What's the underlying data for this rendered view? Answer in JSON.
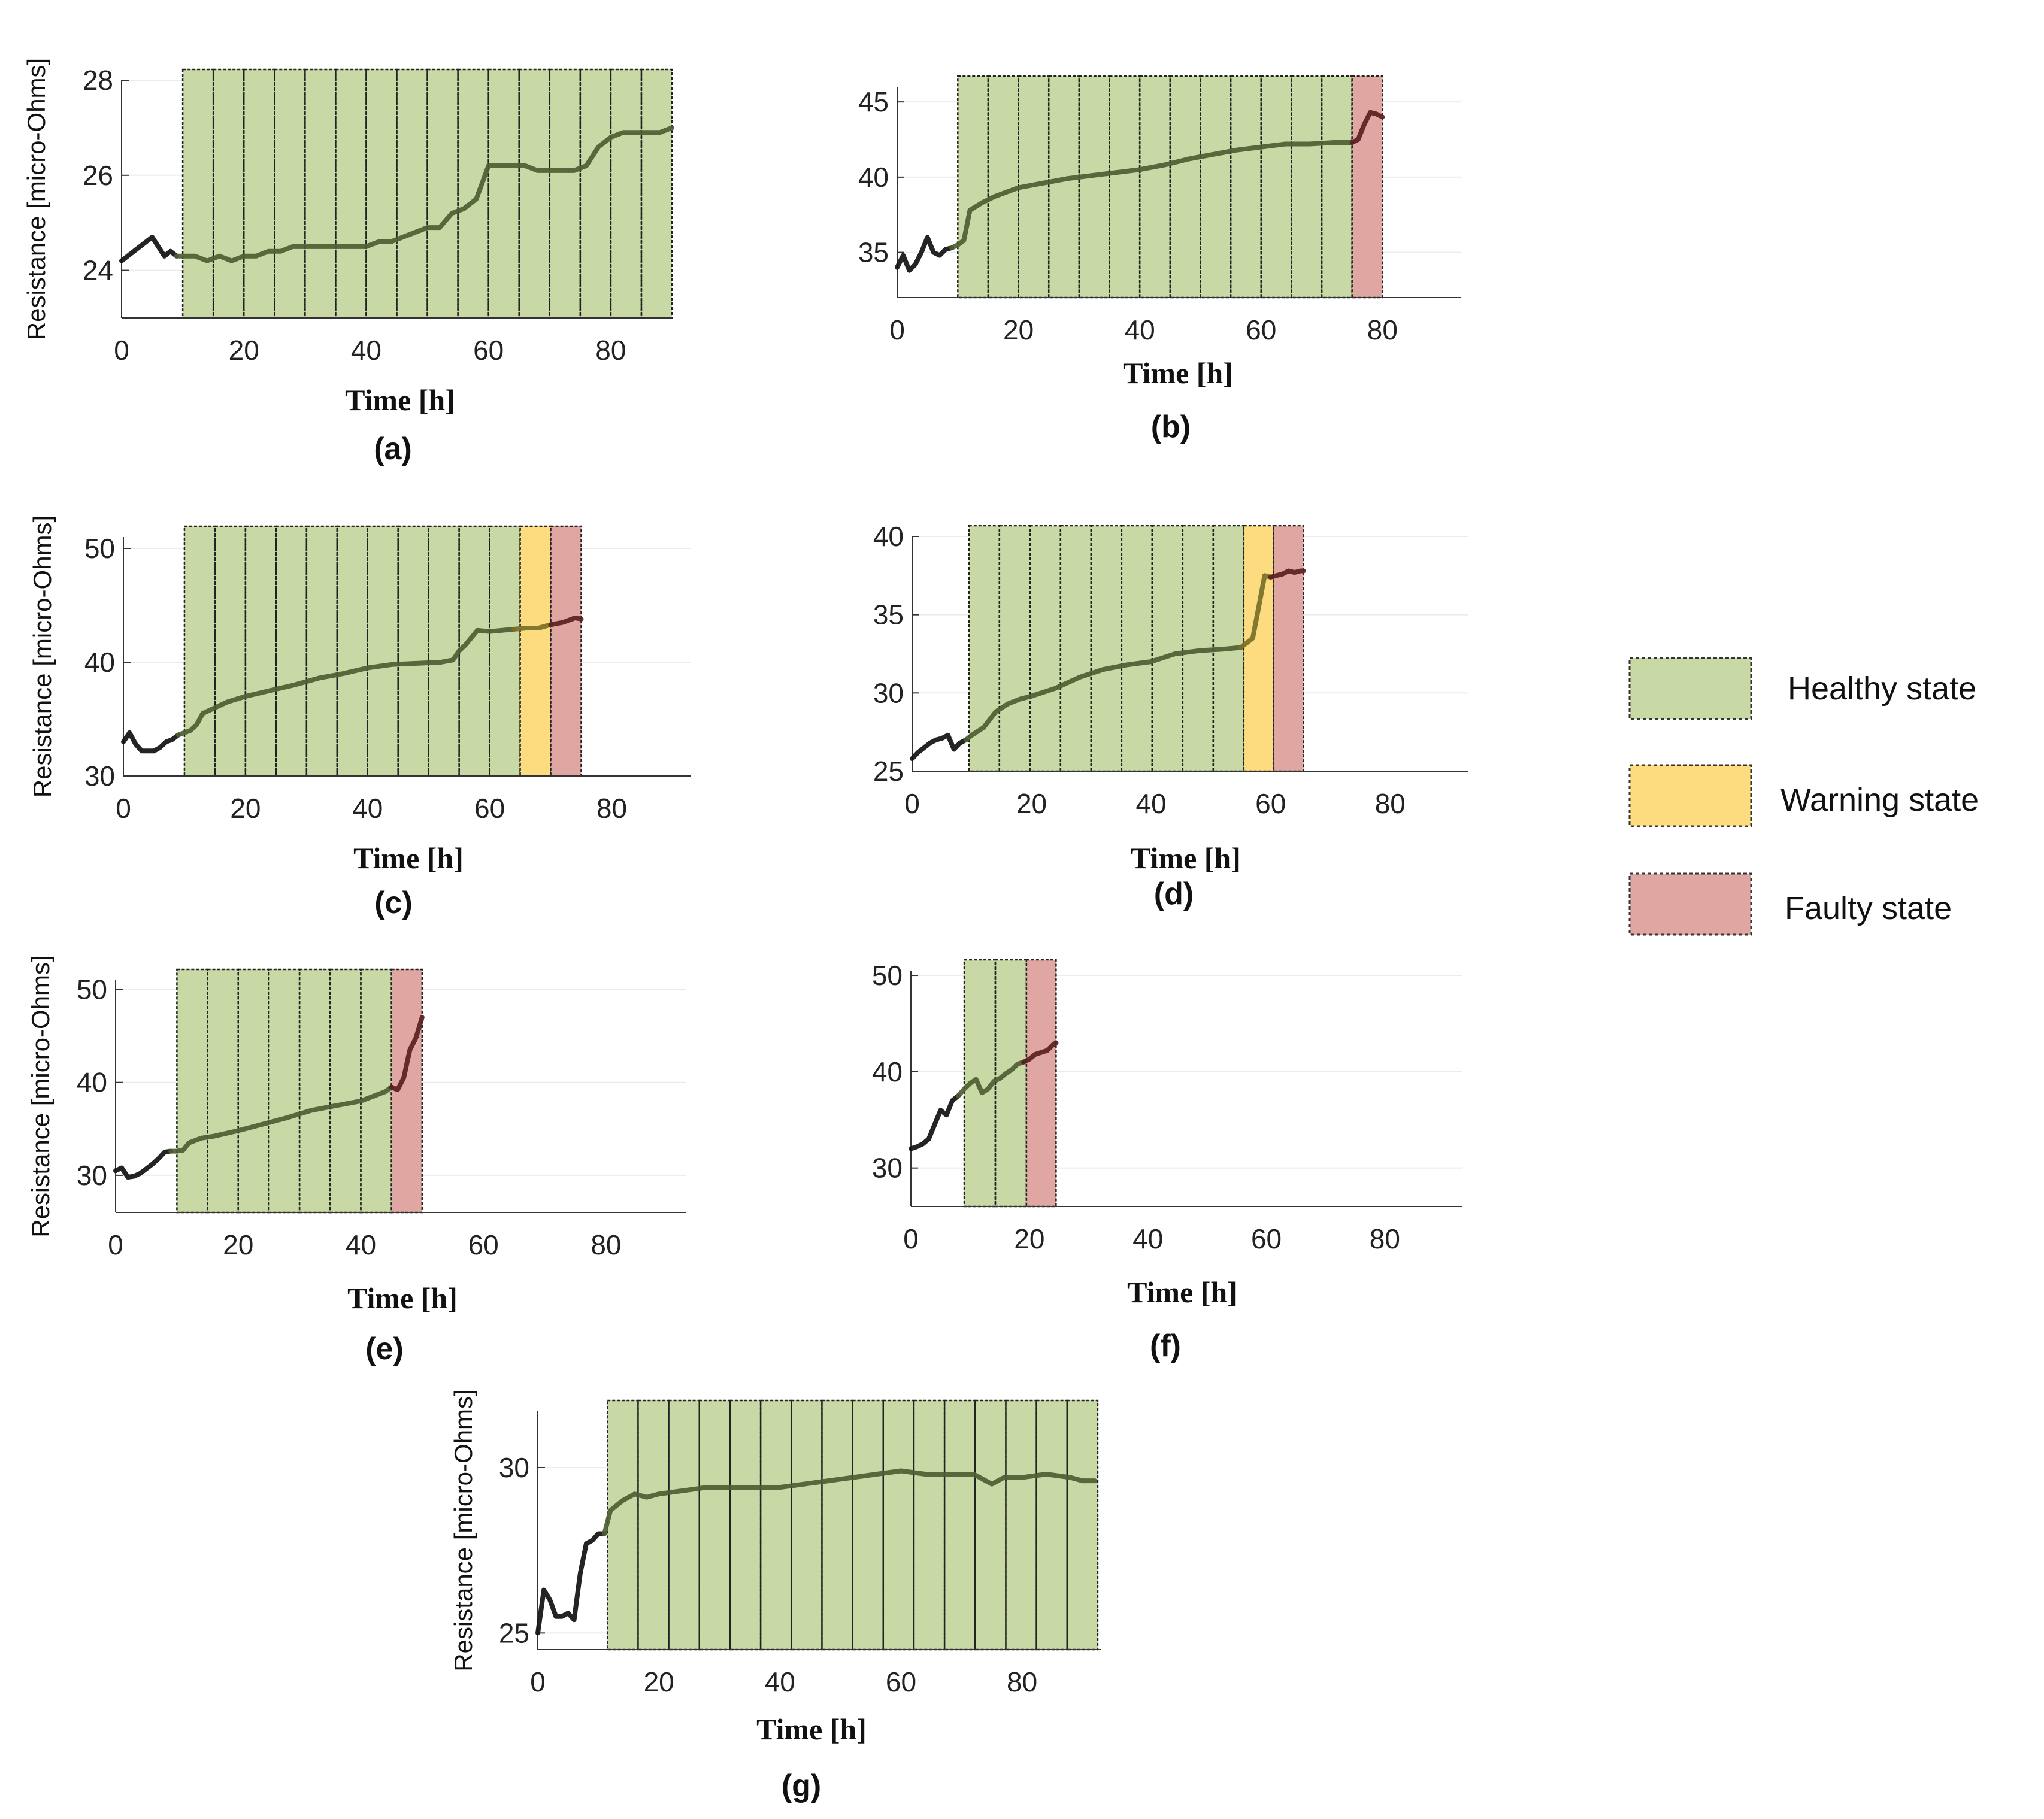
{
  "figure": {
    "legend": [
      {
        "label": "Healthy state",
        "color": "#c9d9a5"
      },
      {
        "label": "Warning state",
        "color": "#fcdc7e"
      },
      {
        "label": "Faulty state",
        "color": "#e0a7a2"
      }
    ]
  },
  "chart_data": [
    {
      "id": "a",
      "type": "line",
      "panel_label": "(a)",
      "xlabel": "Time [h]",
      "ylabel": "Resistance [micro-Ohms]",
      "xlim": [
        0,
        90
      ],
      "ylim": [
        23,
        28
      ],
      "xticks": [
        "0",
        "20",
        "40",
        "60",
        "80"
      ],
      "xtick_values": [
        0,
        20,
        40,
        60,
        80
      ],
      "yticks": [
        "24",
        "26",
        "28"
      ],
      "ytick_values": [
        24,
        26,
        28
      ],
      "states": [
        {
          "state": "healthy",
          "from": 10,
          "to": 90,
          "cells": 16
        }
      ],
      "x": [
        0,
        2,
        4,
        5,
        6,
        7,
        8,
        9,
        10,
        12,
        14,
        16,
        18,
        20,
        22,
        24,
        26,
        28,
        30,
        32,
        34,
        36,
        38,
        40,
        42,
        44,
        46,
        48,
        50,
        52,
        54,
        56,
        58,
        60,
        62,
        64,
        66,
        68,
        70,
        72,
        74,
        76,
        78,
        80,
        82,
        84,
        86,
        88,
        90
      ],
      "y": [
        24.2,
        24.4,
        24.6,
        24.7,
        24.5,
        24.3,
        24.4,
        24.3,
        24.3,
        24.3,
        24.2,
        24.3,
        24.2,
        24.3,
        24.3,
        24.4,
        24.4,
        24.5,
        24.5,
        24.5,
        24.5,
        24.5,
        24.5,
        24.5,
        24.6,
        24.6,
        24.7,
        24.8,
        24.9,
        24.9,
        25.2,
        25.3,
        25.5,
        26.2,
        26.2,
        26.2,
        26.2,
        26.1,
        26.1,
        26.1,
        26.1,
        26.2,
        26.6,
        26.8,
        26.9,
        26.9,
        26.9,
        26.9,
        27.0
      ]
    },
    {
      "id": "b",
      "type": "line",
      "panel_label": "(b)",
      "xlabel": "Time [h]",
      "ylabel": "",
      "xlim": [
        0,
        93
      ],
      "ylim": [
        32,
        46
      ],
      "xticks": [
        "0",
        "20",
        "40",
        "60",
        "80"
      ],
      "xtick_values": [
        0,
        20,
        40,
        60,
        80
      ],
      "yticks": [
        "35",
        "40",
        "45"
      ],
      "ytick_values": [
        35,
        40,
        45
      ],
      "states": [
        {
          "state": "healthy",
          "from": 10,
          "to": 75,
          "cells": 13
        },
        {
          "state": "faulty",
          "from": 75,
          "to": 80,
          "cells": 1
        }
      ],
      "x": [
        0,
        1,
        2,
        3,
        4,
        5,
        6,
        7,
        8,
        9,
        10,
        11,
        12,
        14,
        16,
        18,
        20,
        24,
        28,
        32,
        36,
        40,
        44,
        48,
        52,
        56,
        60,
        64,
        68,
        72,
        74,
        75,
        76,
        77,
        78,
        79,
        80
      ],
      "y": [
        34.0,
        34.8,
        33.8,
        34.2,
        35.0,
        36.0,
        35.0,
        34.8,
        35.2,
        35.3,
        35.5,
        35.8,
        37.8,
        38.3,
        38.7,
        39.0,
        39.3,
        39.6,
        39.9,
        40.1,
        40.3,
        40.5,
        40.8,
        41.2,
        41.5,
        41.8,
        42.0,
        42.2,
        42.2,
        42.3,
        42.3,
        42.3,
        42.5,
        43.5,
        44.3,
        44.2,
        44.0
      ]
    },
    {
      "id": "c",
      "type": "line",
      "panel_label": "(c)",
      "xlabel": "Time [h]",
      "ylabel": "Resistance [micro-Ohms]",
      "xlim": [
        0,
        93
      ],
      "ylim": [
        30,
        51
      ],
      "xticks": [
        "0",
        "20",
        "40",
        "60",
        "80"
      ],
      "xtick_values": [
        0,
        20,
        40,
        60,
        80
      ],
      "yticks": [
        "30",
        "40",
        "50"
      ],
      "ytick_values": [
        30,
        40,
        50
      ],
      "states": [
        {
          "state": "healthy",
          "from": 10,
          "to": 65,
          "cells": 11
        },
        {
          "state": "warning",
          "from": 65,
          "to": 70,
          "cells": 1
        },
        {
          "state": "faulty",
          "from": 70,
          "to": 75,
          "cells": 1
        }
      ],
      "x": [
        0,
        1,
        2,
        3,
        4,
        5,
        6,
        7,
        8,
        9,
        10,
        11,
        12,
        13,
        15,
        17,
        20,
        24,
        28,
        32,
        36,
        40,
        44,
        48,
        52,
        54,
        55,
        56,
        58,
        60,
        62,
        64,
        66,
        68,
        70,
        72,
        74,
        75
      ],
      "y": [
        33.0,
        33.8,
        32.8,
        32.2,
        32.2,
        32.2,
        32.5,
        33.0,
        33.2,
        33.6,
        33.8,
        34.0,
        34.5,
        35.5,
        36.0,
        36.5,
        37.0,
        37.5,
        38.0,
        38.6,
        39.0,
        39.5,
        39.8,
        39.9,
        40.0,
        40.2,
        41.0,
        41.5,
        42.8,
        42.7,
        42.8,
        42.9,
        43.0,
        43.0,
        43.3,
        43.5,
        43.9,
        43.8
      ]
    },
    {
      "id": "d",
      "type": "line",
      "panel_label": "(d)",
      "xlabel": "Time [h]",
      "ylabel": "",
      "xlim": [
        0,
        93
      ],
      "ylim": [
        25,
        40
      ],
      "xticks": [
        "0",
        "20",
        "40",
        "60",
        "80"
      ],
      "xtick_values": [
        0,
        20,
        40,
        60,
        80
      ],
      "yticks": [
        "25",
        "30",
        "35",
        "40"
      ],
      "ytick_values": [
        25,
        30,
        35,
        40
      ],
      "states": [
        {
          "state": "healthy",
          "from": 9.5,
          "to": 55.5,
          "cells": 9
        },
        {
          "state": "warning",
          "from": 55.5,
          "to": 60.5,
          "cells": 1
        },
        {
          "state": "faulty",
          "from": 60.5,
          "to": 65.5,
          "cells": 1
        }
      ],
      "x": [
        0,
        1,
        2,
        3,
        4,
        5,
        6,
        7,
        8,
        9,
        10,
        12,
        14,
        16,
        18,
        20,
        24,
        28,
        32,
        36,
        40,
        44,
        48,
        52,
        55,
        56,
        57,
        58,
        59,
        60,
        61,
        62,
        63,
        64,
        65,
        65.5
      ],
      "y": [
        25.8,
        26.2,
        26.5,
        26.8,
        27.0,
        27.1,
        27.3,
        26.4,
        26.8,
        27.0,
        27.3,
        27.8,
        28.8,
        29.3,
        29.6,
        29.8,
        30.3,
        31.0,
        31.5,
        31.8,
        32.0,
        32.5,
        32.7,
        32.8,
        32.9,
        33.2,
        33.5,
        35.5,
        37.5,
        37.4,
        37.5,
        37.6,
        37.8,
        37.7,
        37.8,
        37.8
      ]
    },
    {
      "id": "e",
      "type": "line",
      "panel_label": "(e)",
      "xlabel": "Time [h]",
      "ylabel": "Resistance [micro-Ohms]",
      "xlim": [
        0,
        93
      ],
      "ylim": [
        26,
        51
      ],
      "xticks": [
        "0",
        "20",
        "40",
        "60",
        "80"
      ],
      "xtick_values": [
        0,
        20,
        40,
        60,
        80
      ],
      "yticks": [
        "30",
        "40",
        "50"
      ],
      "ytick_values": [
        30,
        40,
        50
      ],
      "states": [
        {
          "state": "healthy",
          "from": 10,
          "to": 45,
          "cells": 7
        },
        {
          "state": "faulty",
          "from": 45,
          "to": 50,
          "cells": 1
        }
      ],
      "x": [
        0,
        1,
        2,
        3,
        4,
        5,
        6,
        7,
        8,
        9,
        10,
        11,
        12,
        14,
        16,
        20,
        24,
        28,
        32,
        36,
        40,
        42,
        44,
        45,
        46,
        47,
        48,
        49,
        50
      ],
      "y": [
        30.5,
        30.8,
        29.8,
        29.9,
        30.2,
        30.7,
        31.2,
        31.8,
        32.5,
        32.6,
        32.6,
        32.7,
        33.5,
        34.0,
        34.2,
        34.8,
        35.5,
        36.2,
        37.0,
        37.5,
        38.0,
        38.5,
        39.0,
        39.5,
        39.2,
        40.5,
        43.5,
        44.8,
        47.0
      ]
    },
    {
      "id": "f",
      "type": "line",
      "panel_label": "(f)",
      "xlabel": "Time [h]",
      "ylabel": "",
      "xlim": [
        0,
        93
      ],
      "ylim": [
        26,
        50.5
      ],
      "xticks": [
        "0",
        "20",
        "40",
        "60",
        "80"
      ],
      "xtick_values": [
        0,
        20,
        40,
        60,
        80
      ],
      "yticks": [
        "30",
        "40",
        "50"
      ],
      "ytick_values": [
        30,
        40,
        50
      ],
      "states": [
        {
          "state": "healthy",
          "from": 9,
          "to": 19.5,
          "cells": 2
        },
        {
          "state": "faulty",
          "from": 19.5,
          "to": 24.5,
          "cells": 1
        }
      ],
      "x": [
        0,
        1,
        2,
        3,
        4,
        5,
        6,
        7,
        8,
        9,
        10,
        11,
        12,
        13,
        14,
        15,
        16,
        17,
        18,
        19,
        20,
        21,
        22,
        23,
        24,
        24.5
      ],
      "y": [
        32.0,
        32.2,
        32.5,
        33.0,
        34.5,
        36.0,
        35.5,
        37.0,
        37.5,
        38.2,
        38.8,
        39.2,
        37.8,
        38.2,
        39.0,
        39.3,
        39.8,
        40.2,
        40.8,
        41.0,
        41.3,
        41.8,
        42.0,
        42.2,
        42.8,
        43.0
      ]
    },
    {
      "id": "g",
      "type": "line",
      "panel_label": "(g)",
      "xlabel": "Time [h]",
      "ylabel": "Resistance [micro-Ohms]",
      "xlim": [
        0,
        93
      ],
      "ylim": [
        24.5,
        31.7
      ],
      "xticks": [
        "0",
        "20",
        "40",
        "60",
        "80"
      ],
      "xtick_values": [
        0,
        20,
        40,
        60,
        80
      ],
      "yticks": [
        "25",
        "30"
      ],
      "ytick_values": [
        25,
        30
      ],
      "states": [
        {
          "state": "healthy",
          "from": 11.5,
          "to": 92.5,
          "cells": 16
        }
      ],
      "x": [
        0,
        1,
        2,
        3,
        4,
        5,
        6,
        7,
        8,
        9,
        10,
        11,
        12,
        14,
        16,
        18,
        20,
        24,
        28,
        32,
        36,
        40,
        44,
        48,
        52,
        56,
        60,
        64,
        68,
        72,
        75,
        77,
        80,
        84,
        88,
        90,
        92
      ],
      "y": [
        25.0,
        26.3,
        26.0,
        25.5,
        25.5,
        25.6,
        25.4,
        26.8,
        27.7,
        27.8,
        28.0,
        28.0,
        28.7,
        29.0,
        29.2,
        29.1,
        29.2,
        29.3,
        29.4,
        29.4,
        29.4,
        29.4,
        29.5,
        29.6,
        29.7,
        29.8,
        29.9,
        29.8,
        29.8,
        29.8,
        29.5,
        29.7,
        29.7,
        29.8,
        29.7,
        29.6,
        29.6
      ]
    }
  ]
}
